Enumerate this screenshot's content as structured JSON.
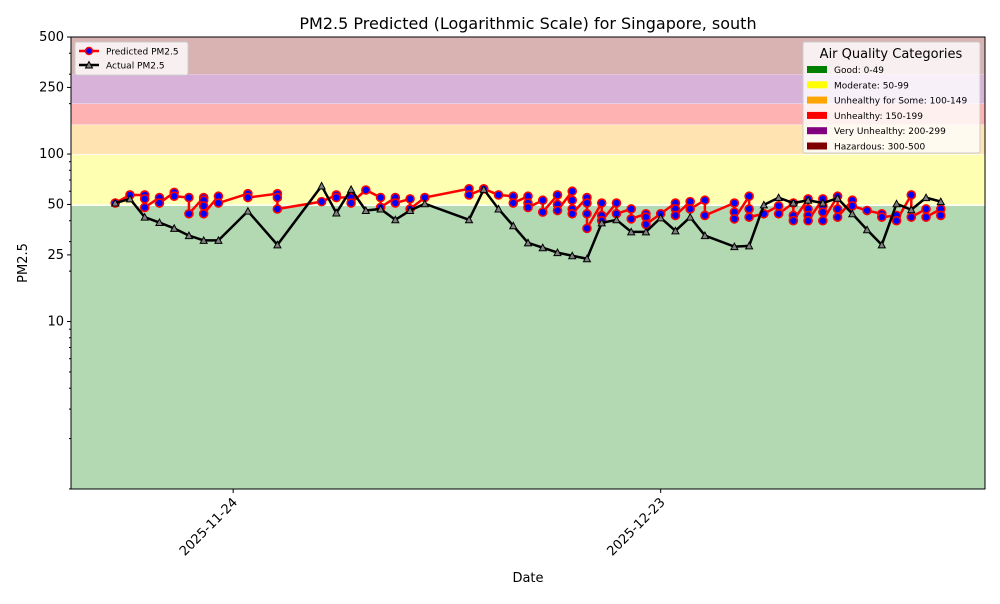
{
  "chart_data": {
    "type": "line",
    "title": "PM2.5 Predicted (Logarithmic Scale) for Singapore, south",
    "xlabel": "Date",
    "ylabel": "PM2.5",
    "yscale": "log",
    "ylim": [
      1,
      500
    ],
    "xlim": [
      "2025-11-13",
      "2026-01-14"
    ],
    "yticks": [
      10,
      25,
      50,
      100,
      250,
      500
    ],
    "xticks": [
      "2025-11-24",
      "2025-12-23"
    ],
    "grid": false,
    "legend_series_placement": "top-left",
    "legend_categories_placement": "top-right",
    "categories_legend": {
      "title": "Air Quality Categories",
      "items": [
        {
          "label": "Good: 0-49",
          "min": 0,
          "max": 49,
          "color": "#008000"
        },
        {
          "label": "Moderate: 50-99",
          "min": 50,
          "max": 99,
          "color": "#ffff00"
        },
        {
          "label": "Unhealthy for Some: 100-149",
          "min": 100,
          "max": 149,
          "color": "#ffa500"
        },
        {
          "label": "Unhealthy: 150-199",
          "min": 150,
          "max": 199,
          "color": "#ff0000"
        },
        {
          "label": "Very Unhealthy: 200-299",
          "min": 200,
          "max": 299,
          "color": "#800080"
        },
        {
          "label": "Hazardous: 300-500",
          "min": 300,
          "max": 500,
          "color": "#800000"
        }
      ]
    },
    "series": [
      {
        "name": "Predicted PM2.5",
        "color": "#ff0000",
        "marker_color": "#0000ff",
        "points": [
          [
            "2025-11-16",
            [
              51
            ]
          ],
          [
            "2025-11-17",
            [
              57
            ]
          ],
          [
            "2025-11-18",
            [
              57,
              54,
              48
            ]
          ],
          [
            "2025-11-19",
            [
              55,
              51
            ]
          ],
          [
            "2025-11-20",
            [
              59,
              56
            ]
          ],
          [
            "2025-11-21",
            [
              55,
              44
            ]
          ],
          [
            "2025-11-22",
            [
              55,
              53,
              49,
              44
            ]
          ],
          [
            "2025-11-23",
            [
              56,
              51
            ]
          ],
          [
            "2025-11-25",
            [
              58,
              55
            ]
          ],
          [
            "2025-11-27",
            [
              58,
              55,
              47
            ]
          ],
          [
            "2025-11-30",
            [
              52
            ]
          ],
          [
            "2025-12-01",
            [
              57,
              55
            ]
          ],
          [
            "2025-12-02",
            [
              55,
              51
            ]
          ],
          [
            "2025-12-03",
            [
              61
            ]
          ],
          [
            "2025-12-04",
            [
              55,
              48
            ]
          ],
          [
            "2025-12-05",
            [
              55,
              51
            ]
          ],
          [
            "2025-12-06",
            [
              54,
              47
            ]
          ],
          [
            "2025-12-07",
            [
              55
            ]
          ],
          [
            "2025-12-10",
            [
              62,
              57
            ]
          ],
          [
            "2025-12-11",
            [
              62
            ]
          ],
          [
            "2025-12-12",
            [
              57
            ]
          ],
          [
            "2025-12-13",
            [
              56,
              51
            ]
          ],
          [
            "2025-12-14",
            [
              56,
              51,
              48
            ]
          ],
          [
            "2025-12-15",
            [
              53,
              45
            ]
          ],
          [
            "2025-12-16",
            [
              57,
              50,
              46
            ]
          ],
          [
            "2025-12-17",
            [
              60,
              53,
              47,
              44
            ]
          ],
          [
            "2025-12-18",
            [
              55,
              51,
              44,
              36
            ]
          ],
          [
            "2025-12-19",
            [
              51,
              43,
              40
            ]
          ],
          [
            "2025-12-20",
            [
              51,
              44
            ]
          ],
          [
            "2025-12-21",
            [
              47,
              41
            ]
          ],
          [
            "2025-12-22",
            [
              44,
              42,
              38
            ]
          ],
          [
            "2025-12-23",
            [
              44
            ]
          ],
          [
            "2025-12-24",
            [
              51,
              47,
              43
            ]
          ],
          [
            "2025-12-25",
            [
              52,
              47
            ]
          ],
          [
            "2025-12-26",
            [
              53,
              43
            ]
          ],
          [
            "2025-12-28",
            [
              51,
              45,
              41
            ]
          ],
          [
            "2025-12-29",
            [
              56,
              47,
              42
            ]
          ],
          [
            "2025-12-30",
            [
              44
            ]
          ],
          [
            "2025-12-31",
            [
              49,
              44
            ]
          ],
          [
            "2026-01-01",
            [
              51,
              43,
              40
            ]
          ],
          [
            "2026-01-02",
            [
              54,
              47,
              43,
              40
            ]
          ],
          [
            "2026-01-03",
            [
              54,
              49,
              45,
              40
            ]
          ],
          [
            "2026-01-04",
            [
              56,
              47,
              42
            ]
          ],
          [
            "2026-01-05",
            [
              53,
              49
            ]
          ],
          [
            "2026-01-06",
            [
              46
            ]
          ],
          [
            "2026-01-07",
            [
              44,
              42
            ]
          ],
          [
            "2026-01-08",
            [
              43,
              40
            ]
          ],
          [
            "2026-01-09",
            [
              57,
              42
            ]
          ],
          [
            "2026-01-10",
            [
              47,
              42
            ]
          ],
          [
            "2026-01-11",
            [
              47,
              43
            ]
          ]
        ]
      },
      {
        "name": "Actual PM2.5",
        "color": "#000000",
        "marker_color": "#808080",
        "points": [
          [
            "2025-11-16",
            51
          ],
          [
            "2025-11-17",
            54
          ],
          [
            "2025-11-18",
            42
          ],
          [
            "2025-11-19",
            39
          ],
          [
            "2025-11-20",
            36
          ],
          [
            "2025-11-21",
            32.6
          ],
          [
            "2025-11-22",
            30.5
          ],
          [
            "2025-11-23",
            30.5
          ],
          [
            "2025-11-25",
            45.6
          ],
          [
            "2025-11-27",
            28.7
          ],
          [
            "2025-11-30",
            64.5
          ],
          [
            "2025-12-01",
            44.5
          ],
          [
            "2025-12-02",
            61.5
          ],
          [
            "2025-12-03",
            46
          ],
          [
            "2025-12-04",
            47
          ],
          [
            "2025-12-05",
            40.5
          ],
          [
            "2025-12-06",
            46
          ],
          [
            "2025-12-07",
            50.5
          ],
          [
            "2025-12-10",
            40.5
          ],
          [
            "2025-12-11",
            61.5
          ],
          [
            "2025-12-12",
            47
          ],
          [
            "2025-12-13",
            37.3
          ],
          [
            "2025-12-14",
            29.5
          ],
          [
            "2025-12-15",
            27.6
          ],
          [
            "2025-12-16",
            25.8
          ],
          [
            "2025-12-17",
            24.7
          ],
          [
            "2025-12-18",
            23.7
          ],
          [
            "2025-12-19",
            38.8
          ],
          [
            "2025-12-20",
            40.5
          ],
          [
            "2025-12-21",
            34.3
          ],
          [
            "2025-12-22",
            34.3
          ],
          [
            "2025-12-23",
            41.6
          ],
          [
            "2025-12-24",
            34.8
          ],
          [
            "2025-12-25",
            42
          ],
          [
            "2025-12-26",
            32.6
          ],
          [
            "2025-12-28",
            28
          ],
          [
            "2025-12-29",
            28.3
          ],
          [
            "2025-12-30",
            49.7
          ],
          [
            "2025-12-31",
            54.9
          ],
          [
            "2026-01-01",
            51
          ],
          [
            "2026-01-02",
            53
          ],
          [
            "2026-01-03",
            51
          ],
          [
            "2026-01-04",
            54.5
          ],
          [
            "2026-01-05",
            44
          ],
          [
            "2026-01-06",
            35.3
          ],
          [
            "2026-01-07",
            28.7
          ],
          [
            "2026-01-08",
            50.5
          ],
          [
            "2026-01-09",
            46.5
          ],
          [
            "2026-01-10",
            54.9
          ],
          [
            "2026-01-11",
            52
          ]
        ]
      }
    ]
  }
}
